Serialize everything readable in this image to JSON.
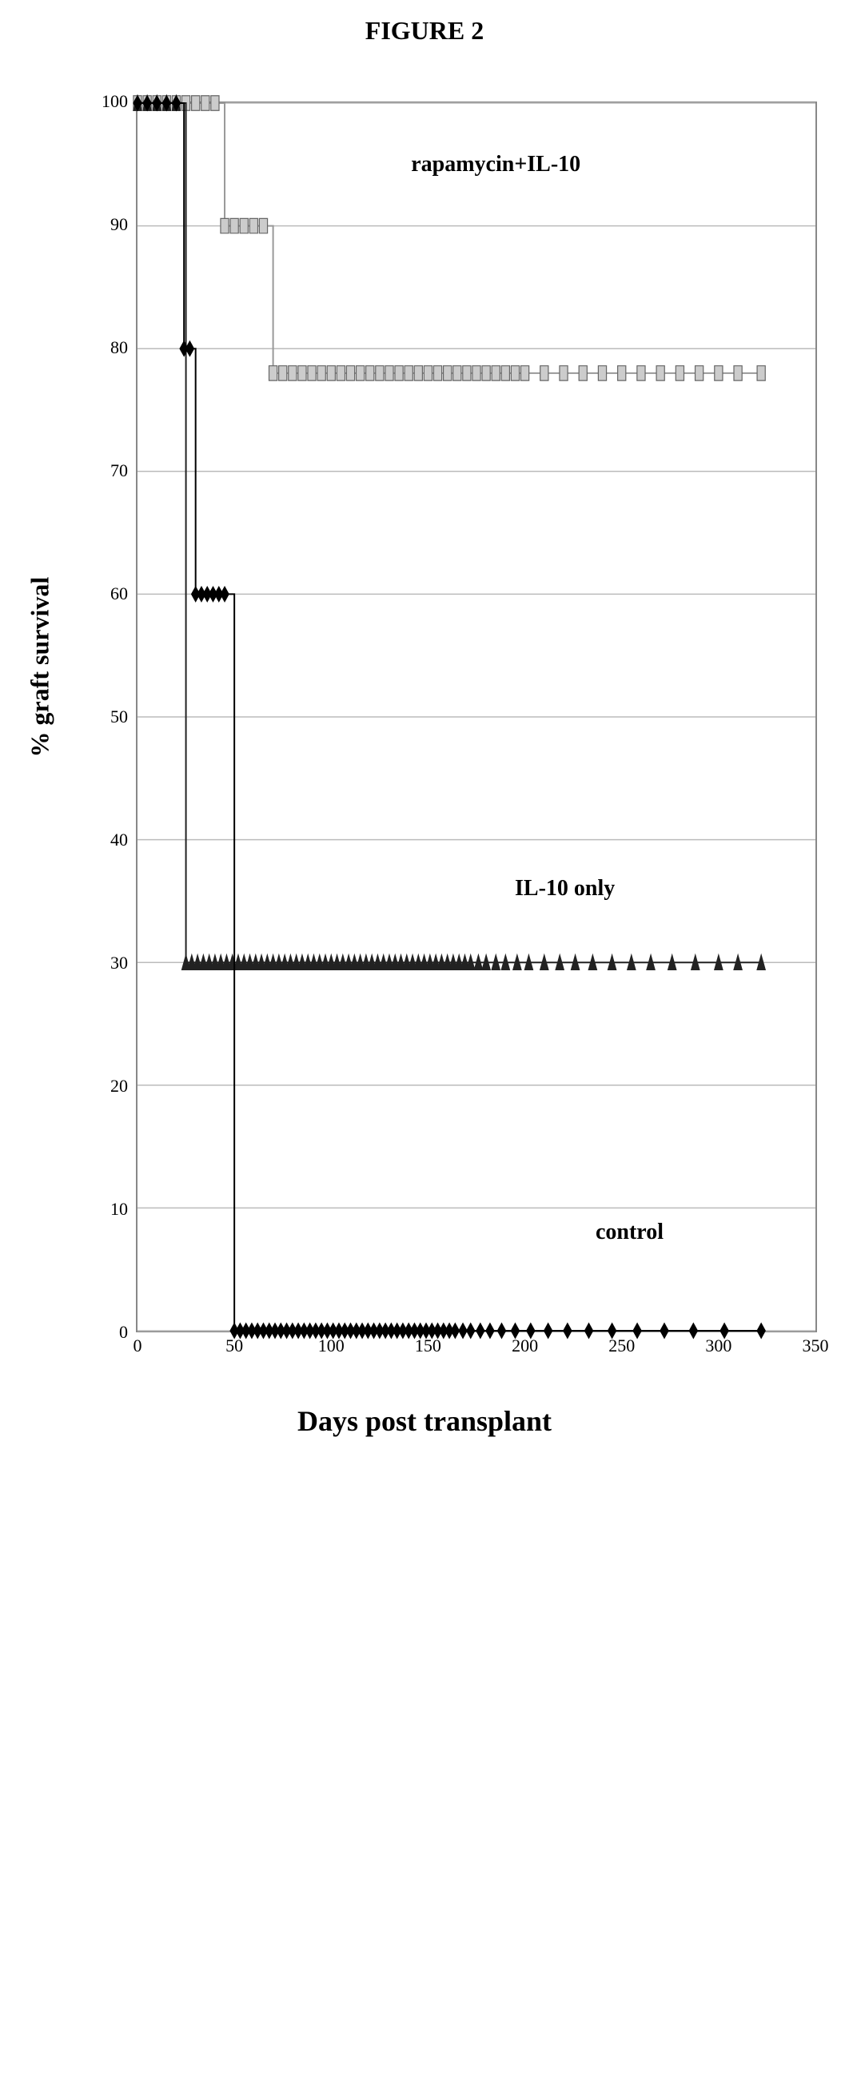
{
  "figure_title": "FIGURE 2",
  "chart": {
    "type": "line",
    "xlabel": "Days post transplant",
    "ylabel": "% graft survival",
    "xlim": [
      0,
      350
    ],
    "ylim": [
      0,
      100
    ],
    "xtick_step": 50,
    "ytick_step": 10,
    "xticks": [
      0,
      50,
      100,
      150,
      200,
      250,
      300,
      350
    ],
    "yticks": [
      0,
      10,
      20,
      30,
      40,
      50,
      60,
      70,
      80,
      90,
      100
    ],
    "background_color": "#ffffff",
    "grid_color": "#bbbbbb",
    "axis_color": "#888888",
    "line_width": 2,
    "marker_size": 6,
    "series": [
      {
        "name": "rapamycin+IL-10",
        "label": "rapamycin+IL-10",
        "color": "#999999",
        "marker": "square-open",
        "marker_fill": "#cccccc",
        "marker_stroke": "#666666",
        "label_pos": {
          "x": 150,
          "y": 95
        },
        "points": [
          [
            0,
            100
          ],
          [
            5,
            100
          ],
          [
            10,
            100
          ],
          [
            15,
            100
          ],
          [
            20,
            100
          ],
          [
            25,
            100
          ],
          [
            30,
            100
          ],
          [
            35,
            100
          ],
          [
            40,
            100
          ],
          [
            45,
            90
          ],
          [
            50,
            90
          ],
          [
            55,
            90
          ],
          [
            60,
            90
          ],
          [
            65,
            90
          ],
          [
            70,
            78
          ],
          [
            75,
            78
          ],
          [
            80,
            78
          ],
          [
            85,
            78
          ],
          [
            90,
            78
          ],
          [
            95,
            78
          ],
          [
            100,
            78
          ],
          [
            105,
            78
          ],
          [
            110,
            78
          ],
          [
            115,
            78
          ],
          [
            120,
            78
          ],
          [
            125,
            78
          ],
          [
            130,
            78
          ],
          [
            135,
            78
          ],
          [
            140,
            78
          ],
          [
            145,
            78
          ],
          [
            150,
            78
          ],
          [
            155,
            78
          ],
          [
            160,
            78
          ],
          [
            165,
            78
          ],
          [
            170,
            78
          ],
          [
            175,
            78
          ],
          [
            180,
            78
          ],
          [
            185,
            78
          ],
          [
            190,
            78
          ],
          [
            195,
            78
          ],
          [
            200,
            78
          ],
          [
            210,
            78
          ],
          [
            220,
            78
          ],
          [
            230,
            78
          ],
          [
            240,
            78
          ],
          [
            250,
            78
          ],
          [
            260,
            78
          ],
          [
            270,
            78
          ],
          [
            280,
            78
          ],
          [
            290,
            78
          ],
          [
            300,
            78
          ],
          [
            310,
            78
          ],
          [
            322,
            78
          ]
        ]
      },
      {
        "name": "IL-10 only",
        "label": "IL-10 only",
        "color": "#222222",
        "marker": "triangle",
        "marker_fill": "#222222",
        "marker_stroke": "#222222",
        "label_pos": {
          "x": 200,
          "y": 36
        },
        "points": [
          [
            0,
            100
          ],
          [
            5,
            100
          ],
          [
            10,
            100
          ],
          [
            15,
            100
          ],
          [
            20,
            100
          ],
          [
            25,
            30
          ],
          [
            28,
            30
          ],
          [
            31,
            30
          ],
          [
            34,
            30
          ],
          [
            37,
            30
          ],
          [
            40,
            30
          ],
          [
            43,
            30
          ],
          [
            46,
            30
          ],
          [
            49,
            30
          ],
          [
            52,
            30
          ],
          [
            55,
            30
          ],
          [
            58,
            30
          ],
          [
            61,
            30
          ],
          [
            64,
            30
          ],
          [
            67,
            30
          ],
          [
            70,
            30
          ],
          [
            73,
            30
          ],
          [
            76,
            30
          ],
          [
            79,
            30
          ],
          [
            82,
            30
          ],
          [
            85,
            30
          ],
          [
            88,
            30
          ],
          [
            91,
            30
          ],
          [
            94,
            30
          ],
          [
            97,
            30
          ],
          [
            100,
            30
          ],
          [
            103,
            30
          ],
          [
            106,
            30
          ],
          [
            109,
            30
          ],
          [
            112,
            30
          ],
          [
            115,
            30
          ],
          [
            118,
            30
          ],
          [
            121,
            30
          ],
          [
            124,
            30
          ],
          [
            127,
            30
          ],
          [
            130,
            30
          ],
          [
            133,
            30
          ],
          [
            136,
            30
          ],
          [
            139,
            30
          ],
          [
            142,
            30
          ],
          [
            145,
            30
          ],
          [
            148,
            30
          ],
          [
            151,
            30
          ],
          [
            154,
            30
          ],
          [
            157,
            30
          ],
          [
            160,
            30
          ],
          [
            163,
            30
          ],
          [
            166,
            30
          ],
          [
            169,
            30
          ],
          [
            172,
            30
          ],
          [
            176,
            30
          ],
          [
            180,
            30
          ],
          [
            185,
            30
          ],
          [
            190,
            30
          ],
          [
            196,
            30
          ],
          [
            202,
            30
          ],
          [
            210,
            30
          ],
          [
            218,
            30
          ],
          [
            226,
            30
          ],
          [
            235,
            30
          ],
          [
            245,
            30
          ],
          [
            255,
            30
          ],
          [
            265,
            30
          ],
          [
            276,
            30
          ],
          [
            288,
            30
          ],
          [
            300,
            30
          ],
          [
            310,
            30
          ],
          [
            322,
            30
          ]
        ]
      },
      {
        "name": "control",
        "label": "control",
        "color": "#000000",
        "marker": "diamond",
        "marker_fill": "#000000",
        "marker_stroke": "#000000",
        "label_pos": {
          "x": 240,
          "y": 8
        },
        "points": [
          [
            0,
            100
          ],
          [
            5,
            100
          ],
          [
            10,
            100
          ],
          [
            15,
            100
          ],
          [
            20,
            100
          ],
          [
            24,
            80
          ],
          [
            27,
            80
          ],
          [
            30,
            60
          ],
          [
            33,
            60
          ],
          [
            36,
            60
          ],
          [
            39,
            60
          ],
          [
            42,
            60
          ],
          [
            45,
            60
          ],
          [
            50,
            0
          ],
          [
            53,
            0
          ],
          [
            56,
            0
          ],
          [
            59,
            0
          ],
          [
            62,
            0
          ],
          [
            65,
            0
          ],
          [
            68,
            0
          ],
          [
            71,
            0
          ],
          [
            74,
            0
          ],
          [
            77,
            0
          ],
          [
            80,
            0
          ],
          [
            83,
            0
          ],
          [
            86,
            0
          ],
          [
            89,
            0
          ],
          [
            92,
            0
          ],
          [
            95,
            0
          ],
          [
            98,
            0
          ],
          [
            101,
            0
          ],
          [
            104,
            0
          ],
          [
            107,
            0
          ],
          [
            110,
            0
          ],
          [
            113,
            0
          ],
          [
            116,
            0
          ],
          [
            119,
            0
          ],
          [
            122,
            0
          ],
          [
            125,
            0
          ],
          [
            128,
            0
          ],
          [
            131,
            0
          ],
          [
            134,
            0
          ],
          [
            137,
            0
          ],
          [
            140,
            0
          ],
          [
            143,
            0
          ],
          [
            146,
            0
          ],
          [
            149,
            0
          ],
          [
            152,
            0
          ],
          [
            155,
            0
          ],
          [
            158,
            0
          ],
          [
            161,
            0
          ],
          [
            164,
            0
          ],
          [
            168,
            0
          ],
          [
            172,
            0
          ],
          [
            177,
            0
          ],
          [
            182,
            0
          ],
          [
            188,
            0
          ],
          [
            195,
            0
          ],
          [
            203,
            0
          ],
          [
            212,
            0
          ],
          [
            222,
            0
          ],
          [
            233,
            0
          ],
          [
            245,
            0
          ],
          [
            258,
            0
          ],
          [
            272,
            0
          ],
          [
            287,
            0
          ],
          [
            303,
            0
          ],
          [
            322,
            0
          ]
        ]
      }
    ]
  }
}
